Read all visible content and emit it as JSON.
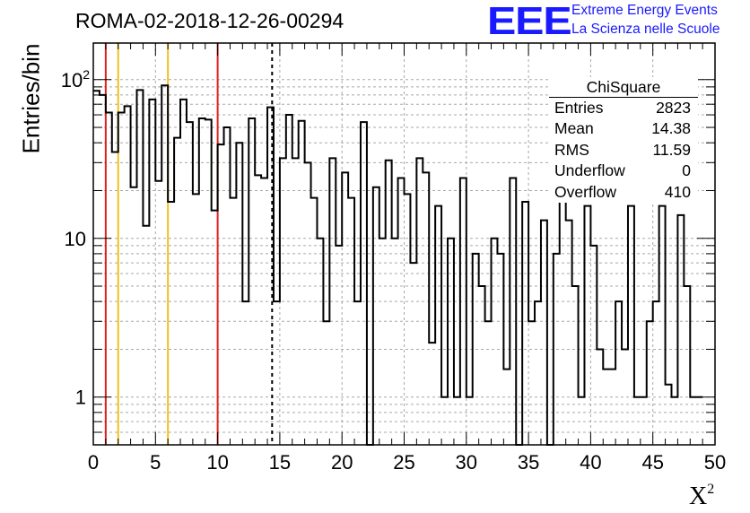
{
  "title": "ROMA-02-2018-12-26-00294",
  "logo": {
    "mark": "EEE",
    "line1": "Extreme Energy Events",
    "line2": "La Scienza nelle Scuole",
    "color": "#1a1aff"
  },
  "stats": {
    "title": "ChiSquare",
    "rows": [
      {
        "label": "Entries",
        "value": "2823"
      },
      {
        "label": "Mean",
        "value": "14.38"
      },
      {
        "label": "RMS",
        "value": "11.59"
      },
      {
        "label": "Underflow",
        "value": "0"
      },
      {
        "label": "Overflow",
        "value": "410"
      }
    ]
  },
  "chart_data": {
    "type": "histogram",
    "title": "ROMA-02-2018-12-26-00294",
    "xlabel": "X",
    "xlabel_sup": "2",
    "ylabel": "Entries/bin",
    "xlim": [
      0,
      50
    ],
    "ylim": [
      0.5,
      170
    ],
    "yscale": "log",
    "grid": true,
    "bin_width": 0.5,
    "x_ticks": [
      "0",
      "5",
      "10",
      "15",
      "20",
      "25",
      "30",
      "35",
      "40",
      "45",
      "50"
    ],
    "y_ticks": [
      {
        "label": "1",
        "value": 1
      },
      {
        "label": "10",
        "value": 10
      },
      {
        "label": "10",
        "sup": "2",
        "value": 100
      }
    ],
    "bin_values": [
      85,
      80,
      62,
      35,
      62,
      68,
      21,
      86,
      12,
      75,
      23,
      92,
      17,
      43,
      75,
      54,
      19,
      57,
      56,
      15,
      39,
      50,
      18,
      40,
      4,
      57,
      25,
      24,
      67,
      4,
      32,
      60,
      32,
      55,
      30,
      18,
      10,
      3,
      32,
      9,
      26,
      18,
      4,
      54,
      0,
      21,
      10,
      31,
      10,
      24,
      19,
      7,
      32,
      26,
      2.2,
      16,
      1,
      10,
      1,
      24,
      1,
      8,
      5,
      3,
      10,
      8,
      1.5,
      24,
      0,
      17,
      3,
      4,
      13,
      0,
      8,
      23,
      13,
      5,
      1,
      16,
      9,
      2,
      1.5,
      1.5,
      4,
      2,
      16,
      1,
      1,
      3,
      4,
      16,
      1.2,
      1,
      14,
      5,
      1,
      1
    ],
    "vertical_lines": [
      {
        "x": 1,
        "color": "#e0201c",
        "style": "solid"
      },
      {
        "x": 2,
        "color": "#f0c020",
        "style": "solid"
      },
      {
        "x": 6,
        "color": "#f0c020",
        "style": "solid"
      },
      {
        "x": 10,
        "color": "#e0201c",
        "style": "solid"
      },
      {
        "x": 14.38,
        "color": "#000000",
        "style": "dashed"
      }
    ]
  }
}
